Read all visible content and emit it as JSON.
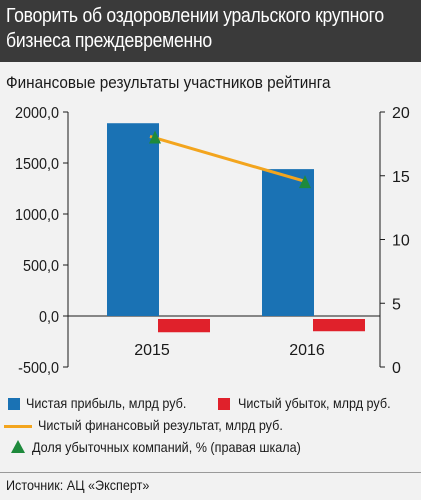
{
  "header": {
    "title_line1": "Говорить об оздоровлении уральского крупного",
    "title_line2": "бизнеса преждевременно"
  },
  "chart_data": {
    "type": "bar",
    "title": "Финансовые результаты участников рейтинга",
    "categories": [
      "2015",
      "2016"
    ],
    "y_left": {
      "lim": [
        -500,
        2000
      ],
      "ticks": [
        "2000,0",
        "1500,0",
        "1000,0",
        "500,0",
        "0,0",
        "-500,0"
      ],
      "tick_values": [
        2000,
        1500,
        1000,
        500,
        0,
        -500
      ]
    },
    "y_right": {
      "lim": [
        0,
        20
      ],
      "ticks": [
        "20",
        "15",
        "10",
        "5",
        "0"
      ],
      "tick_values": [
        20,
        15,
        10,
        5,
        0
      ]
    },
    "series": [
      {
        "name": "Чистая прибыль, млрд руб.",
        "kind": "bar",
        "axis": "left",
        "color": "#1a72b4",
        "values": [
          1890,
          1440
        ]
      },
      {
        "name": "Чистый убыток, млрд руб.",
        "kind": "bar",
        "axis": "left",
        "color": "#e0212b",
        "values": [
          -130,
          -120
        ]
      },
      {
        "name": "Чистый финансовый результат, млрд руб.",
        "kind": "line",
        "axis": "left",
        "color": "#f3a51e",
        "values": [
          1760,
          1320
        ]
      },
      {
        "name": "Доля убыточных компаний, % (правая шкала)",
        "kind": "marker",
        "axis": "right",
        "color": "#1e8a3c",
        "values": [
          18.0,
          14.5
        ]
      }
    ],
    "grid": false,
    "legend_position": "bottom"
  },
  "legend": {
    "profit": "Чистая прибыль, млрд руб.",
    "loss": "Чистый убыток, млрд руб.",
    "net": "Чистый финансовый результат, млрд руб.",
    "share": "Доля убыточных компаний, % (правая шкала)"
  },
  "footer": {
    "source": "Источник: АЦ «Эксперт»"
  },
  "colors": {
    "header_bg": "#3a3a3a",
    "page_bg": "#f2f2f2",
    "profit": "#1a72b4",
    "loss": "#e0212b",
    "net": "#f3a51e",
    "share": "#1e8a3c"
  }
}
